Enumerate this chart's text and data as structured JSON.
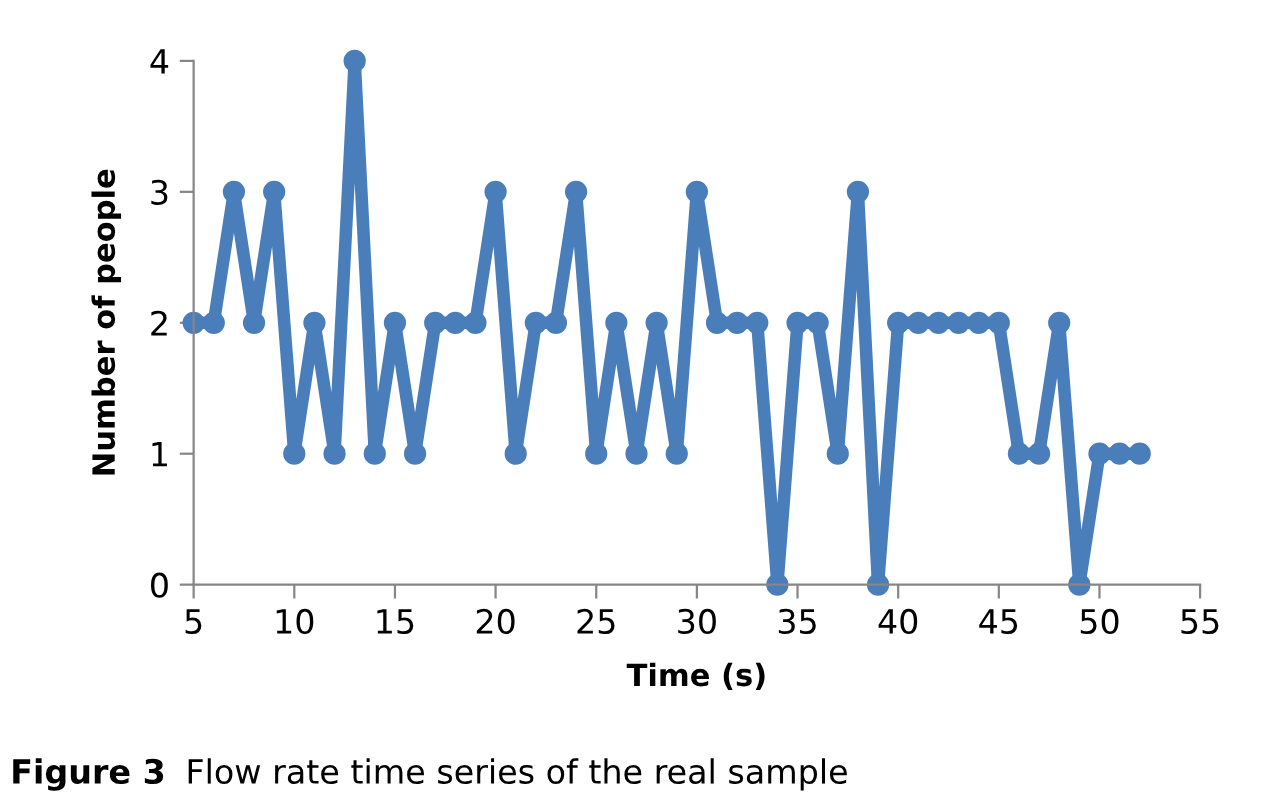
{
  "chart_data": {
    "type": "line",
    "xlabel": "Time (s)",
    "ylabel": "Number of people",
    "annotations": [
      "Figure 3",
      "Flow rate time series of the real sample"
    ],
    "x": [
      5,
      6,
      7,
      8,
      9,
      10,
      11,
      12,
      13,
      14,
      15,
      16,
      17,
      18,
      19,
      20,
      21,
      22,
      23,
      24,
      25,
      26,
      27,
      28,
      29,
      30,
      31,
      32,
      33,
      34,
      35,
      36,
      37,
      38,
      39,
      40,
      41,
      42,
      43,
      44,
      45,
      46,
      47,
      48,
      49,
      50,
      51,
      52
    ],
    "series": [
      {
        "color": "#4a7ebb",
        "values": [
          2,
          2,
          3,
          2,
          3,
          1,
          2,
          1,
          4,
          1,
          2,
          1,
          2,
          2,
          2,
          3,
          1,
          2,
          2,
          3,
          1,
          2,
          1,
          2,
          1,
          3,
          2,
          2,
          2,
          0,
          2,
          2,
          1,
          3,
          0,
          2,
          2,
          2,
          2,
          2,
          2,
          1,
          1,
          2,
          0,
          1,
          1,
          1
        ]
      }
    ],
    "xlim": [
      5,
      55
    ],
    "xticks": [
      5,
      10,
      15,
      20,
      25,
      30,
      35,
      40,
      45,
      50,
      55
    ],
    "ylim": [
      0,
      4
    ],
    "yticks": [
      0,
      1,
      2,
      3,
      4
    ],
    "grid": false,
    "marker": "circle",
    "line_style": "solid"
  }
}
